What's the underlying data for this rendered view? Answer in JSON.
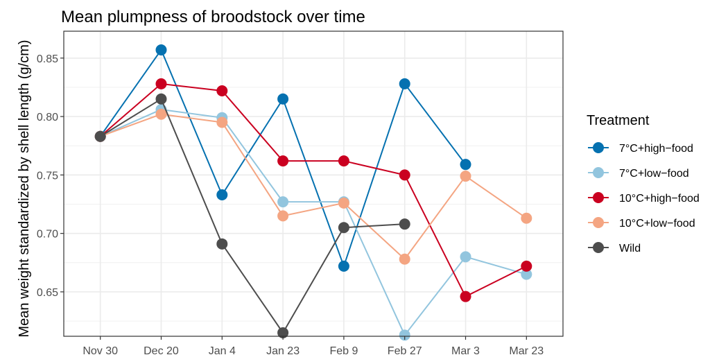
{
  "chart_data": {
    "type": "line",
    "title": "Mean plumpness of broodstock over time",
    "xlabel": "",
    "ylabel": "Mean weight standardized by shell length (g/cm)",
    "categories": [
      "Nov 30",
      "Dec 20",
      "Jan 4",
      "Jan 23",
      "Feb 9",
      "Feb 27",
      "Mar 3",
      "Mar 23"
    ],
    "ylim": [
      0.612,
      0.873
    ],
    "yticks": [
      0.65,
      0.7,
      0.75,
      0.8,
      0.85
    ],
    "ytick_labels": [
      "0.65",
      "0.70",
      "0.75",
      "0.80",
      "0.85"
    ],
    "grid": true,
    "legend": {
      "title": "Treatment",
      "position": "right"
    },
    "series": [
      {
        "name": "7°C+high−food",
        "color": "#0571b0",
        "values": [
          0.783,
          0.857,
          0.733,
          0.815,
          0.672,
          0.828,
          0.759,
          null
        ]
      },
      {
        "name": "7°C+low−food",
        "color": "#92c5de",
        "values": [
          0.783,
          0.806,
          0.799,
          0.727,
          0.727,
          0.613,
          0.68,
          0.665
        ]
      },
      {
        "name": "10°C+high−food",
        "color": "#ca0020",
        "values": [
          0.783,
          0.828,
          0.822,
          0.762,
          0.762,
          0.75,
          0.646,
          0.672
        ]
      },
      {
        "name": "10°C+low−food",
        "color": "#f4a582",
        "values": [
          0.783,
          0.802,
          0.795,
          0.715,
          0.726,
          0.678,
          0.749,
          0.713
        ]
      },
      {
        "name": "Wild",
        "color": "#4d4d4d",
        "values": [
          0.783,
          0.815,
          0.691,
          0.615,
          0.705,
          0.708,
          null,
          null
        ]
      }
    ]
  }
}
